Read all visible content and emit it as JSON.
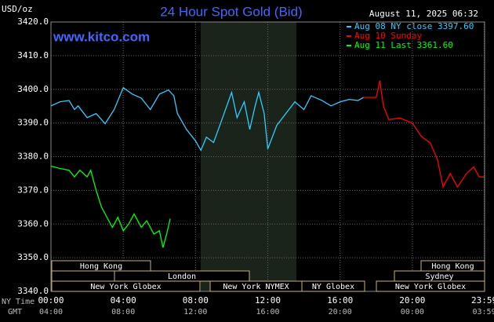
{
  "chart_data": {
    "type": "line",
    "title": "24 Hour Spot Gold (Bid)",
    "subtitle": "www.kitco.com",
    "unit_label": "USD/oz",
    "timestamp": "August 11, 2025 06:32",
    "x_row_labels": [
      "NY Time",
      "GMT"
    ],
    "xlim": [
      0,
      24
    ],
    "xticks": [
      {
        "value": 0,
        "label": "00:00"
      },
      {
        "value": 4,
        "label": "04:00"
      },
      {
        "value": 8,
        "label": "08:00"
      },
      {
        "value": 12,
        "label": "12:00"
      },
      {
        "value": 16,
        "label": "16:00"
      },
      {
        "value": 20,
        "label": "20:00"
      },
      {
        "value": 23.98,
        "label": "23:59"
      }
    ],
    "x2ticks": [
      {
        "value": 0,
        "label": "04:00"
      },
      {
        "value": 4,
        "label": "08:00"
      },
      {
        "value": 8,
        "label": "12:00"
      },
      {
        "value": 12,
        "label": "16:00"
      },
      {
        "value": 16,
        "label": "20:00"
      },
      {
        "value": 20,
        "label": "00:00"
      },
      {
        "value": 23.98,
        "label": "03:59"
      }
    ],
    "ylim": [
      3340,
      3420
    ],
    "yticks": [
      {
        "value": 3340,
        "label": "3340.0"
      },
      {
        "value": 3350,
        "label": "3350.0"
      },
      {
        "value": 3360,
        "label": "3360.0"
      },
      {
        "value": 3370,
        "label": "3370.0"
      },
      {
        "value": 3380,
        "label": "3380.0"
      },
      {
        "value": 3390,
        "label": "3390.0"
      },
      {
        "value": 3400,
        "label": "3400.0"
      },
      {
        "value": 3410,
        "label": "3410.0"
      },
      {
        "value": 3420,
        "label": "3420.0"
      }
    ],
    "grid": true,
    "sessions": [
      "Hong Kong",
      "London",
      "New York Globex",
      "New York NYMEX",
      "NY Globex",
      "Hong Kong",
      "Sydney",
      "New York Globex"
    ],
    "series": [
      {
        "name": "Aug 08 NY close 3397.60",
        "color": "#33ccff",
        "x": [
          0,
          0.5,
          1.0,
          1.3,
          1.5,
          2.0,
          2.5,
          3.0,
          3.5,
          4.0,
          4.5,
          5.0,
          5.5,
          6.0,
          6.5,
          6.8,
          7.0,
          7.5,
          8.0,
          8.3,
          8.6,
          9.0,
          9.5,
          10.0,
          10.3,
          10.7,
          11.0,
          11.3,
          11.5,
          11.8,
          12.0,
          12.5,
          13.0,
          13.5,
          14.0,
          14.4,
          15.0,
          15.5,
          16.0,
          16.5,
          17.0,
          17.3
        ],
        "values": [
          3395.1,
          3396.3,
          3396.7,
          3394.0,
          3395.1,
          3391.6,
          3392.8,
          3389.8,
          3394.0,
          3400.5,
          3398.6,
          3397.4,
          3394.0,
          3398.6,
          3399.8,
          3398.1,
          3392.8,
          3388.1,
          3384.7,
          3381.9,
          3385.8,
          3384.2,
          3391.6,
          3399.1,
          3391.6,
          3396.3,
          3388.1,
          3395.1,
          3399.1,
          3392.8,
          3382.3,
          3389.3,
          3392.8,
          3396.3,
          3394.0,
          3398.1,
          3396.7,
          3395.1,
          3396.3,
          3397.0,
          3396.7,
          3397.6
        ]
      },
      {
        "name": "Aug 10 Sunday",
        "color": "#ff0000",
        "x": [
          17.3,
          18.0,
          18.2,
          18.4,
          18.7,
          19.3,
          20.0,
          20.5,
          21.0,
          21.4,
          21.7,
          22.1,
          22.5,
          23.0,
          23.4,
          23.7,
          23.98
        ],
        "values": [
          3397.6,
          3397.6,
          3402.6,
          3395.0,
          3391.0,
          3391.5,
          3390.0,
          3386.0,
          3384.0,
          3379.0,
          3371.0,
          3375.0,
          3371.0,
          3375.0,
          3377.0,
          3374.0,
          3374.0
        ]
      },
      {
        "name": "Aug 11 Last 3361.60",
        "color": "#00ff00",
        "x": [
          0,
          0.5,
          1.0,
          1.3,
          1.6,
          2.0,
          2.2,
          2.5,
          2.8,
          3.2,
          3.4,
          3.7,
          4.0,
          4.3,
          4.6,
          5.0,
          5.3,
          5.7,
          6.0,
          6.2,
          6.4,
          6.6
        ],
        "values": [
          3377.2,
          3376.5,
          3376.0,
          3374.0,
          3376.0,
          3374.0,
          3376.0,
          3370.0,
          3365.0,
          3361.0,
          3359.0,
          3362.0,
          3358.0,
          3360.0,
          3363.0,
          3359.0,
          3361.0,
          3357.0,
          3358.0,
          3353.0,
          3357.0,
          3361.6
        ]
      }
    ]
  }
}
